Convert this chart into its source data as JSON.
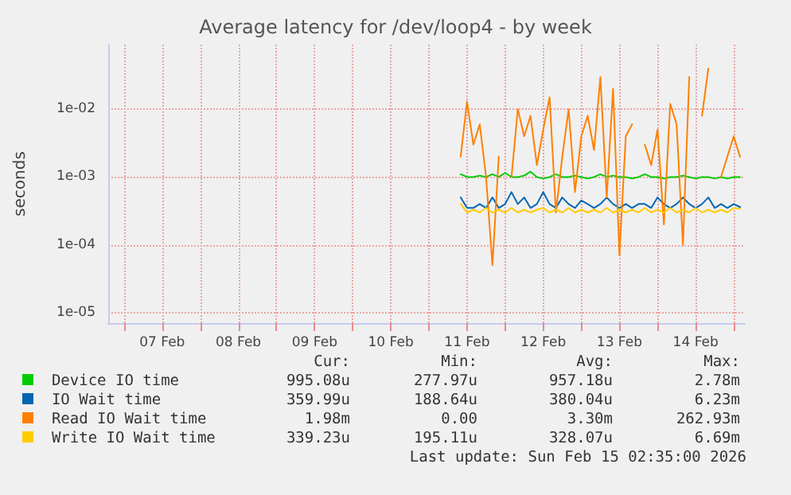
{
  "chart_data": {
    "type": "line",
    "title": "Average latency for /dev/loop4 - by week",
    "ylabel": "seconds",
    "log": "y",
    "grid": true,
    "legend": "bottom",
    "marker": "none",
    "line_style": "solid",
    "xlim": [
      "2026-02-06T19:00",
      "2026-02-15T03:30"
    ],
    "xticks": [
      {
        "value": "2026-02-07T00:00",
        "label": null
      },
      {
        "value": "2026-02-07T12:00",
        "label": "07 Feb"
      },
      {
        "value": "2026-02-08T00:00",
        "label": null
      },
      {
        "value": "2026-02-08T12:00",
        "label": "08 Feb"
      },
      {
        "value": "2026-02-09T00:00",
        "label": null
      },
      {
        "value": "2026-02-09T12:00",
        "label": "09 Feb"
      },
      {
        "value": "2026-02-10T00:00",
        "label": null
      },
      {
        "value": "2026-02-10T12:00",
        "label": "10 Feb"
      },
      {
        "value": "2026-02-11T00:00",
        "label": null
      },
      {
        "value": "2026-02-11T12:00",
        "label": "11 Feb"
      },
      {
        "value": "2026-02-12T00:00",
        "label": null
      },
      {
        "value": "2026-02-12T12:00",
        "label": "12 Feb"
      },
      {
        "value": "2026-02-13T00:00",
        "label": null
      },
      {
        "value": "2026-02-13T12:00",
        "label": "13 Feb"
      },
      {
        "value": "2026-02-14T00:00",
        "label": null
      },
      {
        "value": "2026-02-14T12:00",
        "label": "14 Feb"
      },
      {
        "value": "2026-02-15T00:00",
        "label": null
      }
    ],
    "ylim": [
      7e-06,
      0.09
    ],
    "yticks": [
      {
        "value": 1e-05,
        "label": "1e-05"
      },
      {
        "value": 0.0001,
        "label": "1e-04"
      },
      {
        "value": 0.001,
        "label": "1e-03"
      },
      {
        "value": 0.01,
        "label": "1e-02"
      }
    ],
    "x": [
      "2026-02-11T10:00",
      "2026-02-11T12:00",
      "2026-02-11T14:00",
      "2026-02-11T16:00",
      "2026-02-11T18:00",
      "2026-02-11T20:00",
      "2026-02-11T22:00",
      "2026-02-12T00:00",
      "2026-02-12T02:00",
      "2026-02-12T04:00",
      "2026-02-12T06:00",
      "2026-02-12T08:00",
      "2026-02-12T10:00",
      "2026-02-12T12:00",
      "2026-02-12T14:00",
      "2026-02-12T16:00",
      "2026-02-12T18:00",
      "2026-02-12T20:00",
      "2026-02-12T22:00",
      "2026-02-13T00:00",
      "2026-02-13T02:00",
      "2026-02-13T04:00",
      "2026-02-13T06:00",
      "2026-02-13T08:00",
      "2026-02-13T10:00",
      "2026-02-13T12:00",
      "2026-02-13T14:00",
      "2026-02-13T16:00",
      "2026-02-13T18:00",
      "2026-02-13T20:00",
      "2026-02-13T22:00",
      "2026-02-14T00:00",
      "2026-02-14T02:00",
      "2026-02-14T04:00",
      "2026-02-14T06:00",
      "2026-02-14T08:00",
      "2026-02-14T10:00",
      "2026-02-14T12:00",
      "2026-02-14T14:00",
      "2026-02-14T16:00",
      "2026-02-14T18:00",
      "2026-02-14T20:00",
      "2026-02-14T22:00",
      "2026-02-15T00:00",
      "2026-02-15T02:00"
    ],
    "series": [
      {
        "name": "Device IO time",
        "color": "#00cc00",
        "values": [
          0.0011,
          0.001,
          0.001,
          0.00105,
          0.001,
          0.0011,
          0.001,
          0.00115,
          0.001,
          0.001,
          0.00105,
          0.0012,
          0.001,
          0.00095,
          0.001,
          0.0011,
          0.001,
          0.001,
          0.00105,
          0.001,
          0.00095,
          0.001,
          0.0011,
          0.001,
          0.00105,
          0.001,
          0.001,
          0.00095,
          0.001,
          0.0011,
          0.001,
          0.001,
          0.00095,
          0.001,
          0.001,
          0.00105,
          0.001,
          0.00095,
          0.001,
          0.001,
          0.00095,
          0.001,
          0.00095,
          0.001,
          0.001
        ]
      },
      {
        "name": "IO Wait time",
        "color": "#0066b3",
        "values": [
          0.0005,
          0.00035,
          0.00035,
          0.0004,
          0.00035,
          0.0005,
          0.00035,
          0.0004,
          0.0006,
          0.0004,
          0.0005,
          0.00035,
          0.0004,
          0.0006,
          0.0004,
          0.00035,
          0.0005,
          0.0004,
          0.00035,
          0.00045,
          0.0004,
          0.00035,
          0.0004,
          0.0005,
          0.0004,
          0.00035,
          0.0004,
          0.00035,
          0.0004,
          0.0004,
          0.00035,
          0.0005,
          0.0004,
          0.00035,
          0.0004,
          0.0005,
          0.0004,
          0.00035,
          0.0004,
          0.0005,
          0.00035,
          0.0004,
          0.00035,
          0.0004,
          0.00036
        ]
      },
      {
        "name": "Read IO Wait time",
        "color": "#ff8000",
        "values": [
          0.002,
          0.013,
          0.003,
          0.006,
          0.001,
          5e-05,
          0.002,
          null,
          0.001,
          0.01,
          0.004,
          0.008,
          0.0015,
          0.005,
          0.015,
          0.0003,
          0.002,
          0.01,
          0.0006,
          0.004,
          0.008,
          0.0025,
          0.03,
          0.0005,
          0.02,
          7e-05,
          0.004,
          0.006,
          null,
          0.003,
          0.0015,
          0.005,
          0.0002,
          0.012,
          0.006,
          0.0001,
          0.03,
          null,
          0.008,
          0.04,
          null,
          0.001,
          0.002,
          0.004,
          0.00198
        ]
      },
      {
        "name": "Write IO Wait time",
        "color": "#ffcc00",
        "values": [
          0.0004,
          0.0003,
          0.00033,
          0.0003,
          0.00035,
          0.0003,
          0.00033,
          0.0003,
          0.00035,
          0.0003,
          0.00033,
          0.0003,
          0.00033,
          0.00035,
          0.0003,
          0.00033,
          0.0003,
          0.00035,
          0.0003,
          0.00033,
          0.0003,
          0.00033,
          0.0003,
          0.00035,
          0.0003,
          0.00033,
          0.0003,
          0.00033,
          0.0003,
          0.00035,
          0.0003,
          0.00033,
          0.0003,
          0.00035,
          0.0003,
          0.00033,
          0.0003,
          0.00035,
          0.0003,
          0.00033,
          0.0003,
          0.00033,
          0.0003,
          0.00035,
          0.00034
        ]
      }
    ],
    "annotations": [
      "Cur:",
      "Min:",
      "Avg:",
      "Max:",
      "995.08u",
      "277.97u",
      "957.18u",
      "2.78m",
      "359.99u",
      "188.64u",
      "380.04u",
      "6.23m",
      "1.98m",
      "0.00",
      "3.30m",
      "262.93m",
      "339.23u",
      "195.11u",
      "328.07u",
      "6.69m",
      "Last update: Sun Feb 15 02:35:00 2026"
    ]
  }
}
